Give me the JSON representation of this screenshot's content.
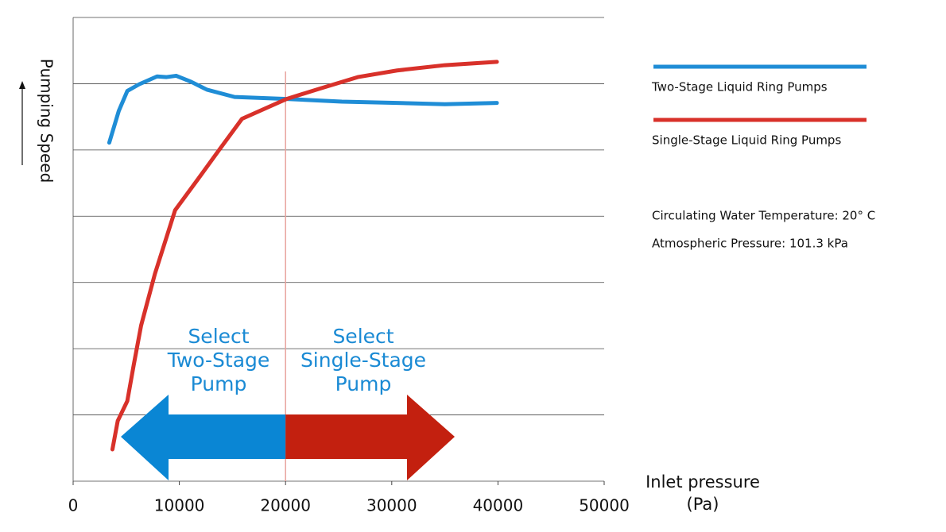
{
  "chart_data": {
    "type": "line",
    "ylabel": "Pumping Speed",
    "xlabel": [
      "Inlet pressure",
      "(Pa)"
    ],
    "xlim": [
      0,
      50000
    ],
    "xticks": [
      0,
      10000,
      20000,
      30000,
      40000,
      50000
    ],
    "ylim": [
      0,
      7
    ],
    "ygrid": [
      1,
      2,
      3,
      4,
      5,
      6,
      7
    ],
    "vline": 20000,
    "series": [
      {
        "name": "Two-Stage Liquid Ring Pumps",
        "color": "#1f8dd6",
        "x": [
          3400,
          4300,
          5100,
          6200,
          7900,
          8800,
          9700,
          11100,
          12600,
          15200,
          20100,
          25300,
          30500,
          35000,
          39900
        ],
        "values": [
          5.11,
          5.59,
          5.89,
          5.99,
          6.11,
          6.1,
          6.12,
          6.03,
          5.91,
          5.8,
          5.77,
          5.73,
          5.71,
          5.69,
          5.71
        ]
      },
      {
        "name": "Single-Stage Liquid Ring Pumps",
        "color": "#d8312a",
        "x": [
          3700,
          4200,
          5100,
          5700,
          6400,
          7700,
          9600,
          11800,
          13700,
          15900,
          20100,
          23100,
          26800,
          30500,
          35000,
          39900
        ],
        "values": [
          0.48,
          0.91,
          1.21,
          1.75,
          2.35,
          3.13,
          4.09,
          4.57,
          4.99,
          5.47,
          5.77,
          5.92,
          6.1,
          6.2,
          6.28,
          6.33
        ]
      }
    ],
    "annotations": [
      [
        "Select",
        "Two-Stage",
        "Pump"
      ],
      [
        "Select",
        "Single-Stage",
        "Pump"
      ]
    ],
    "notes": [
      "Circulating Water Temperature: 20° C",
      "Atmospheric Pressure: 101.3 kPa"
    ]
  }
}
